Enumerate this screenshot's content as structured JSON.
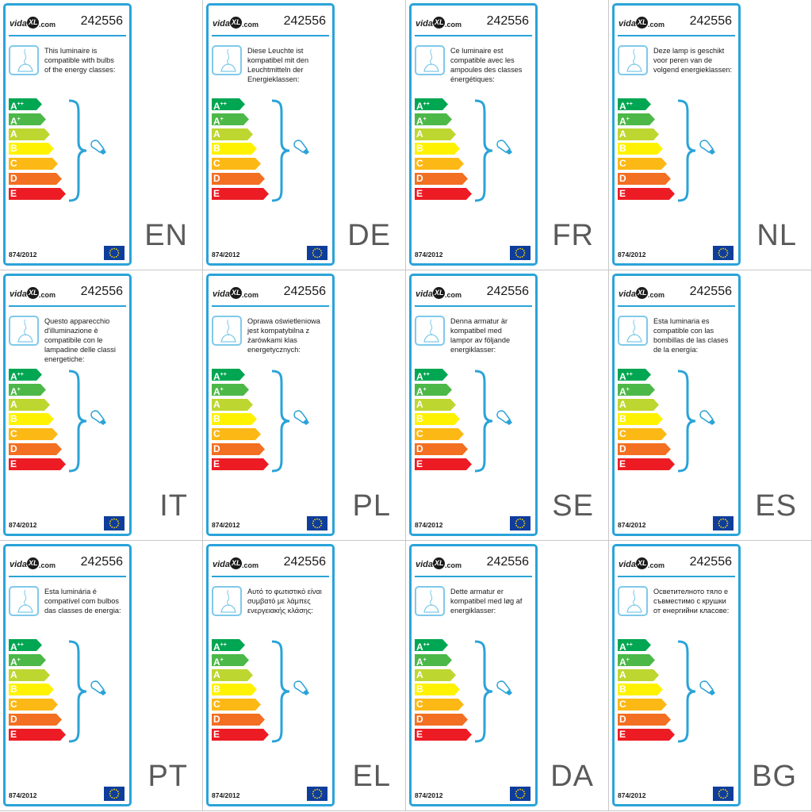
{
  "brand": {
    "logo_left": "vida",
    "logo_mark": "XL",
    "logo_right": ".com"
  },
  "model_number": "242556",
  "regulation": "874/2012",
  "energy_classes": [
    {
      "letter": "A",
      "sup": "++",
      "color": "#00a651"
    },
    {
      "letter": "A",
      "sup": "+",
      "color": "#4cb848"
    },
    {
      "letter": "A",
      "sup": "",
      "color": "#bed630"
    },
    {
      "letter": "B",
      "sup": "",
      "color": "#fff200"
    },
    {
      "letter": "C",
      "sup": "",
      "color": "#fcb814"
    },
    {
      "letter": "D",
      "sup": "",
      "color": "#f36f21"
    },
    {
      "letter": "E",
      "sup": "",
      "color": "#ed1c24"
    }
  ],
  "colors": {
    "accent": "#2aa3d8",
    "eu_blue": "#0f3d9b",
    "eu_star": "#ffdd00"
  },
  "icons": {
    "lamp": "pendant-lamp-icon",
    "bulb": "light-bulb-icon",
    "brace": "curly-brace-icon",
    "flag": "eu-flag-icon"
  },
  "labels": [
    {
      "lang": "EN",
      "text": "This luminaire is\ncompatible with bulbs\nof the energy classes:"
    },
    {
      "lang": "DE",
      "text": "Diese Leuchte ist\nkompatibel mit den\nLeuchtmitteln der\nEnergieklassen:"
    },
    {
      "lang": "FR",
      "text": "Ce luminaire est\ncompatible avec les\nampoules des classes\nénergétiques:"
    },
    {
      "lang": "NL",
      "text": "Deze lamp is geschikt\nvoor peren van de\nvolgend energieklassen:"
    },
    {
      "lang": "IT",
      "text": "Questo apparecchio\nd'illuminazione è\ncompatibile con le\nlampadine delle classi\nenergetiche:"
    },
    {
      "lang": "PL",
      "text": "Oprawa oświetleniowa\njest kompatybilna z\nżarówkami klas\nenergetycznych:"
    },
    {
      "lang": "SE",
      "text": "Denna armatur är\nkompatibel med\nlampor av följande\nenergiklasser:"
    },
    {
      "lang": "ES",
      "text": "Esta luminaria es\ncompatible con las\nbombillas de las clases\nde la energía:"
    },
    {
      "lang": "PT",
      "text": "Esta luminária é\ncompatível com bulbos\ndas classes de energia:"
    },
    {
      "lang": "EL",
      "text": "Αυτό το φωτιστικό είναι\nσυμβατό με λάμπες\nενεργειακής κλάσης:"
    },
    {
      "lang": "DA",
      "text": "Dette armatur er\nkompatibel med løg af\nenergiklasser:"
    },
    {
      "lang": "BG",
      "text": "Осветителното тяло е\nсъвместимо с крушки\nот енергийни класове:"
    }
  ]
}
